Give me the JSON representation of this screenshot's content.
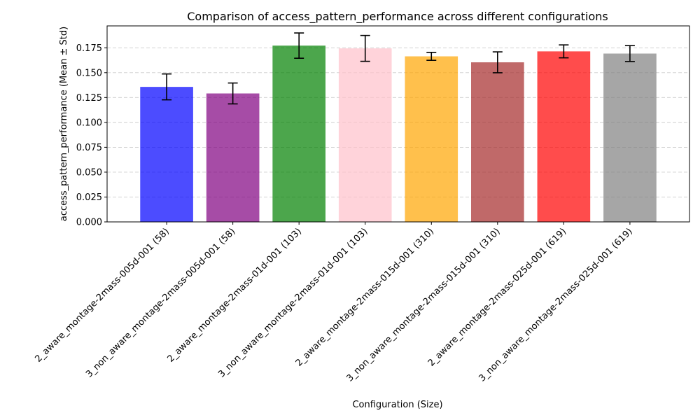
{
  "chart_data": {
    "type": "bar",
    "title": "Comparison of access_pattern_performance across different configurations",
    "xlabel": "Configuration (Size)",
    "ylabel": "access_pattern_performance (Mean ± Std)",
    "ylim": [
      0,
      0.197
    ],
    "yticks": [
      "0.000",
      "0.025",
      "0.050",
      "0.075",
      "0.100",
      "0.125",
      "0.150",
      "0.175"
    ],
    "grid": "y-dashed",
    "categories": [
      "2_aware_montage-2mass-005d-001 (58)",
      "3_non_aware_montage-2mass-005d-001 (58)",
      "2_aware_montage-2mass-01d-001 (103)",
      "3_non_aware_montage-2mass-01d-001 (103)",
      "2_aware_montage-2mass-015d-001 (310)",
      "3_non_aware_montage-2mass-015d-001 (310)",
      "2_aware_montage-2mass-025d-001 (619)",
      "3_non_aware_montage-2mass-025d-001 (619)"
    ],
    "values": [
      0.1357,
      0.1291,
      0.1772,
      0.1744,
      0.1664,
      0.1604,
      0.1714,
      0.1692
    ],
    "errors": [
      0.013,
      0.0105,
      0.0127,
      0.013,
      0.004,
      0.0105,
      0.0065,
      0.008
    ],
    "colors": [
      "#0000ff",
      "#800080",
      "#008000",
      "#ffc0cb",
      "#ffa500",
      "#a52a2a",
      "#ff0000",
      "#808080"
    ],
    "bar_opacity": 0.7
  }
}
